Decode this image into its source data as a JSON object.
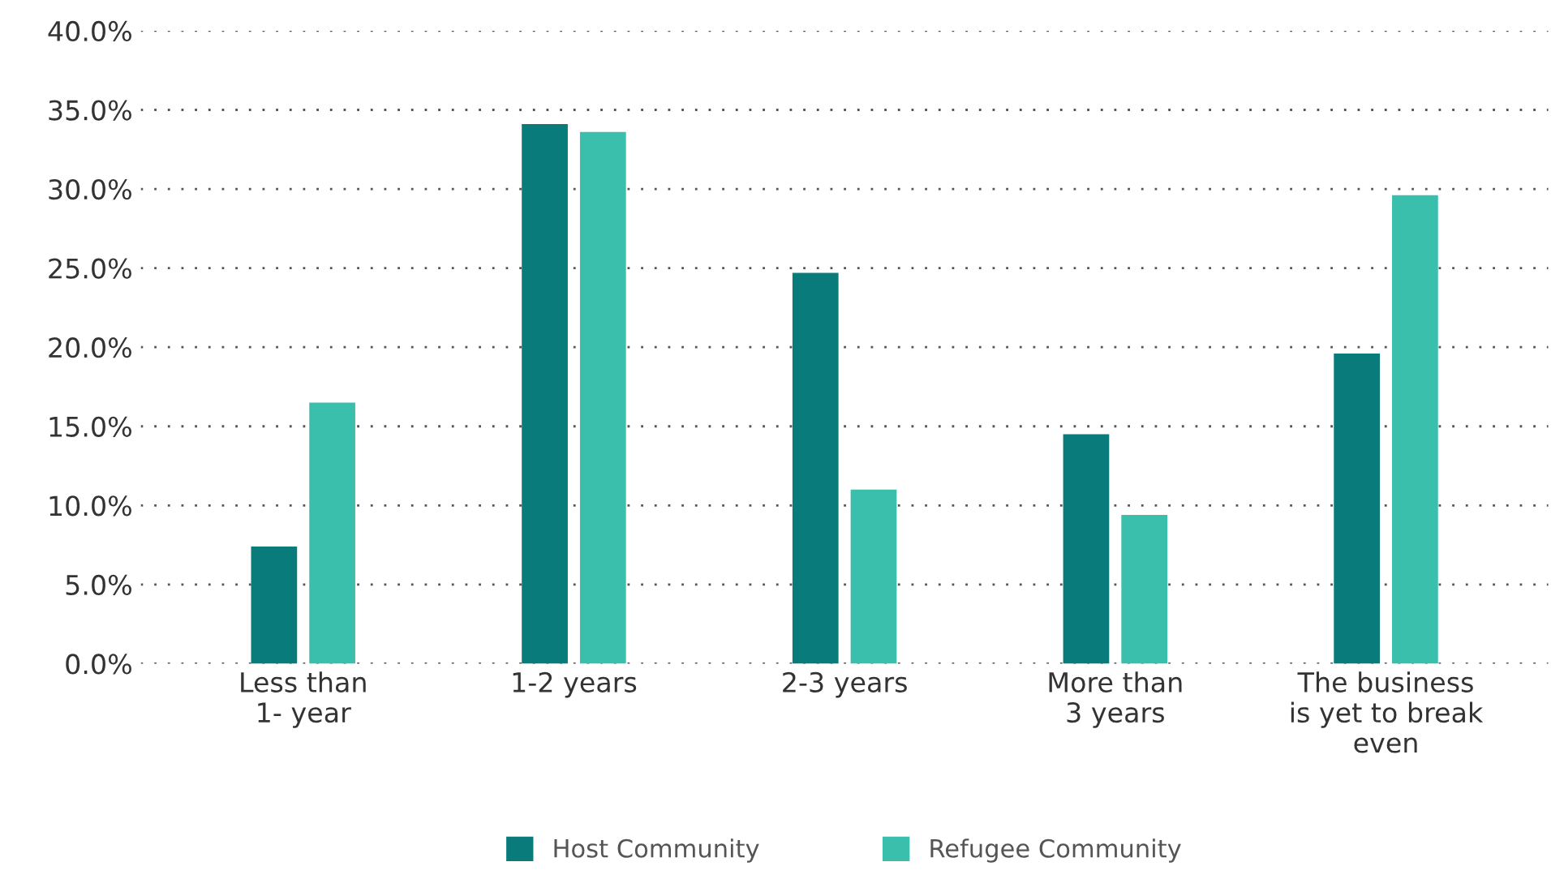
{
  "chart_data": {
    "type": "bar",
    "categories": [
      "Less than\n1- year",
      "1-2 years",
      "2-3 years",
      "More than\n3 years",
      "The business\nis yet to break\neven"
    ],
    "series": [
      {
        "name": "Host Community",
        "color": "#0a7b7b",
        "values": [
          7.4,
          34.1,
          24.7,
          14.5,
          19.6
        ]
      },
      {
        "name": "Refugee Community",
        "color": "#3bbfad",
        "values": [
          16.5,
          33.6,
          11.0,
          9.4,
          29.6
        ]
      }
    ],
    "ylim": [
      0,
      40
    ],
    "yticks": [
      {
        "value": 0,
        "label": "0.0%"
      },
      {
        "value": 5,
        "label": "5.0%"
      },
      {
        "value": 10,
        "label": "10.0%"
      },
      {
        "value": 15,
        "label": "15.0%"
      },
      {
        "value": 20,
        "label": "20.0%"
      },
      {
        "value": 25,
        "label": "25.0%"
      },
      {
        "value": 30,
        "label": "30.0%"
      },
      {
        "value": 35,
        "label": "35.0%"
      },
      {
        "value": 40,
        "label": "40.0%"
      }
    ],
    "grid": "y",
    "legend": "bottom"
  }
}
